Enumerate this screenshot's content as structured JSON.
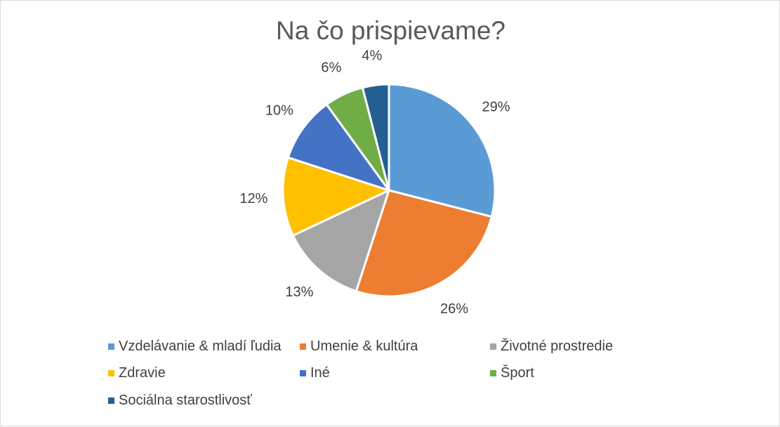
{
  "chart_data": {
    "type": "pie",
    "title": "Na čo prispievame?",
    "categories": [
      "Vzdelávanie & mladí ľudia",
      "Umenie & kultúra",
      "Životné prostredie",
      "Zdravie",
      "Iné",
      "Šport",
      "Sociálna starostlivosť"
    ],
    "values": [
      29,
      26,
      13,
      12,
      10,
      6,
      4
    ],
    "labels": [
      "29%",
      "26%",
      "13%",
      "12%",
      "10%",
      "6%",
      "4%"
    ],
    "colors": [
      "#5b9bd5",
      "#ed7d31",
      "#a5a5a5",
      "#ffc000",
      "#4472c4",
      "#70ad47",
      "#255e91"
    ],
    "legend_position": "bottom"
  }
}
